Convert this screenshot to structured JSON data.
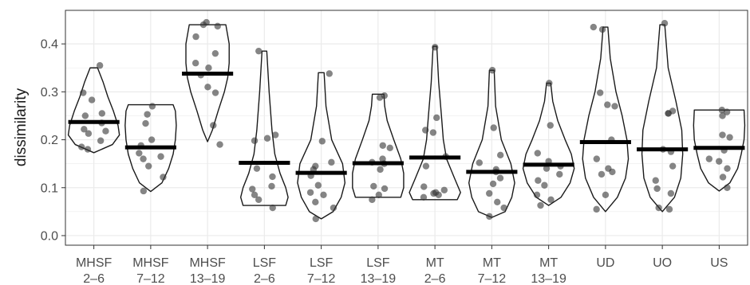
{
  "chart_data": {
    "type": "violin",
    "ylabel": "dissimilarity",
    "xlabel": "",
    "ylim": [
      -0.02,
      0.47
    ],
    "yticks": [
      0.0,
      0.1,
      0.2,
      0.3,
      0.4
    ],
    "ytick_labels": [
      "0.0",
      "0.1",
      "0.2",
      "0.3",
      "0.4"
    ],
    "grid": true,
    "theme": "bw",
    "colors": {
      "outline": "#1a1a1a",
      "point": "#333333",
      "mean_bar": "#000000",
      "grid_major": "#ebebeb",
      "panel_border": "#333333"
    },
    "categories": [
      {
        "label_line1": "MHSF",
        "label_line2": "2–6",
        "mean": 0.237,
        "violin": [
          [
            0.173,
            0.0
          ],
          [
            0.19,
            0.4
          ],
          [
            0.21,
            0.55
          ],
          [
            0.23,
            0.52
          ],
          [
            0.26,
            0.42
          ],
          [
            0.29,
            0.3
          ],
          [
            0.32,
            0.2
          ],
          [
            0.35,
            0.08
          ]
        ],
        "points": [
          0.355,
          0.298,
          0.283,
          0.255,
          0.25,
          0.235,
          0.222,
          0.218,
          0.213,
          0.198,
          0.185,
          0.18
        ]
      },
      {
        "label_line1": "MHSF",
        "label_line2": "7–12",
        "mean": 0.184,
        "violin": [
          [
            0.092,
            0.0
          ],
          [
            0.11,
            0.25
          ],
          [
            0.14,
            0.4
          ],
          [
            0.17,
            0.5
          ],
          [
            0.2,
            0.55
          ],
          [
            0.23,
            0.57
          ],
          [
            0.26,
            0.55
          ],
          [
            0.273,
            0.5
          ]
        ],
        "points": [
          0.27,
          0.253,
          0.234,
          0.2,
          0.188,
          0.172,
          0.165,
          0.16,
          0.145,
          0.122,
          0.093
        ]
      },
      {
        "label_line1": "MHSF",
        "label_line2": "13–19",
        "mean": 0.338,
        "violin": [
          [
            0.196,
            0.0
          ],
          [
            0.22,
            0.1
          ],
          [
            0.26,
            0.22
          ],
          [
            0.3,
            0.35
          ],
          [
            0.33,
            0.42
          ],
          [
            0.36,
            0.45
          ],
          [
            0.4,
            0.45
          ],
          [
            0.44,
            0.38
          ]
        ],
        "points": [
          0.445,
          0.44,
          0.437,
          0.415,
          0.38,
          0.36,
          0.35,
          0.335,
          0.31,
          0.298,
          0.23,
          0.19
        ]
      },
      {
        "label_line1": "LSF",
        "label_line2": "2–6",
        "mean": 0.152,
        "violin": [
          [
            0.063,
            0.45
          ],
          [
            0.08,
            0.5
          ],
          [
            0.1,
            0.45
          ],
          [
            0.13,
            0.33
          ],
          [
            0.17,
            0.22
          ],
          [
            0.22,
            0.16
          ],
          [
            0.3,
            0.1
          ],
          [
            0.385,
            0.05
          ]
        ],
        "points": [
          0.385,
          0.21,
          0.203,
          0.198,
          0.14,
          0.123,
          0.103,
          0.097,
          0.085,
          0.075,
          0.058
        ]
      },
      {
        "label_line1": "LSF",
        "label_line2": "7–12",
        "mean": 0.131,
        "violin": [
          [
            0.035,
            0.0
          ],
          [
            0.05,
            0.25
          ],
          [
            0.08,
            0.42
          ],
          [
            0.11,
            0.5
          ],
          [
            0.15,
            0.45
          ],
          [
            0.2,
            0.22
          ],
          [
            0.27,
            0.1
          ],
          [
            0.34,
            0.06
          ]
        ],
        "points": [
          0.338,
          0.197,
          0.153,
          0.145,
          0.138,
          0.125,
          0.105,
          0.09,
          0.085,
          0.07,
          0.058,
          0.035
        ]
      },
      {
        "label_line1": "LSF",
        "label_line2": "13–19",
        "mean": 0.151,
        "violin": [
          [
            0.08,
            0.55
          ],
          [
            0.1,
            0.62
          ],
          [
            0.13,
            0.62
          ],
          [
            0.16,
            0.55
          ],
          [
            0.2,
            0.38
          ],
          [
            0.24,
            0.22
          ],
          [
            0.27,
            0.16
          ],
          [
            0.295,
            0.14
          ]
        ],
        "points": [
          0.292,
          0.288,
          0.188,
          0.183,
          0.16,
          0.153,
          0.15,
          0.138,
          0.103,
          0.098,
          0.085,
          0.075
        ]
      },
      {
        "label_line1": "MT",
        "label_line2": "2–6",
        "mean": 0.163,
        "violin": [
          [
            0.075,
            0.48
          ],
          [
            0.09,
            0.55
          ],
          [
            0.12,
            0.42
          ],
          [
            0.16,
            0.25
          ],
          [
            0.2,
            0.18
          ],
          [
            0.25,
            0.14
          ],
          [
            0.32,
            0.08
          ],
          [
            0.395,
            0.04
          ]
        ],
        "points": [
          0.393,
          0.246,
          0.22,
          0.215,
          0.165,
          0.145,
          0.102,
          0.095,
          0.09,
          0.088,
          0.085,
          0.08
        ]
      },
      {
        "label_line1": "MT",
        "label_line2": "7–12",
        "mean": 0.133,
        "violin": [
          [
            0.038,
            0.0
          ],
          [
            0.05,
            0.28
          ],
          [
            0.08,
            0.42
          ],
          [
            0.11,
            0.48
          ],
          [
            0.15,
            0.4
          ],
          [
            0.2,
            0.2
          ],
          [
            0.27,
            0.08
          ],
          [
            0.345,
            0.05
          ]
        ],
        "points": [
          0.345,
          0.225,
          0.168,
          0.152,
          0.138,
          0.133,
          0.12,
          0.108,
          0.088,
          0.07,
          0.058,
          0.04
        ]
      },
      {
        "label_line1": "MT",
        "label_line2": "13–19",
        "mean": 0.148,
        "violin": [
          [
            0.063,
            0.0
          ],
          [
            0.08,
            0.3
          ],
          [
            0.11,
            0.52
          ],
          [
            0.14,
            0.62
          ],
          [
            0.17,
            0.55
          ],
          [
            0.2,
            0.4
          ],
          [
            0.24,
            0.22
          ],
          [
            0.28,
            0.1
          ],
          [
            0.318,
            0.05
          ]
        ],
        "points": [
          0.318,
          0.23,
          0.172,
          0.155,
          0.145,
          0.14,
          0.128,
          0.115,
          0.105,
          0.085,
          0.075,
          0.063
        ]
      },
      {
        "label_line1": "UD",
        "label_line2": "",
        "mean": 0.195,
        "violin": [
          [
            0.05,
            0.0
          ],
          [
            0.08,
            0.25
          ],
          [
            0.12,
            0.42
          ],
          [
            0.16,
            0.48
          ],
          [
            0.2,
            0.45
          ],
          [
            0.25,
            0.35
          ],
          [
            0.3,
            0.22
          ],
          [
            0.37,
            0.1
          ],
          [
            0.435,
            0.05
          ]
        ],
        "points": [
          0.435,
          0.43,
          0.298,
          0.273,
          0.27,
          0.2,
          0.16,
          0.14,
          0.133,
          0.128,
          0.085,
          0.055
        ]
      },
      {
        "label_line1": "UO",
        "label_line2": "",
        "mean": 0.18,
        "violin": [
          [
            0.05,
            0.0
          ],
          [
            0.08,
            0.25
          ],
          [
            0.12,
            0.38
          ],
          [
            0.17,
            0.42
          ],
          [
            0.22,
            0.4
          ],
          [
            0.28,
            0.28
          ],
          [
            0.35,
            0.12
          ],
          [
            0.44,
            0.05
          ]
        ],
        "points": [
          0.443,
          0.26,
          0.255,
          0.255,
          0.18,
          0.175,
          0.145,
          0.115,
          0.098,
          0.088,
          0.058,
          0.055
        ]
      },
      {
        "label_line1": "US",
        "label_line2": "",
        "mean": 0.183,
        "violin": [
          [
            0.093,
            0.0
          ],
          [
            0.11,
            0.3
          ],
          [
            0.14,
            0.52
          ],
          [
            0.17,
            0.62
          ],
          [
            0.2,
            0.7
          ],
          [
            0.23,
            0.72
          ],
          [
            0.262,
            0.7
          ]
        ],
        "points": [
          0.262,
          0.258,
          0.25,
          0.21,
          0.205,
          0.178,
          0.16,
          0.155,
          0.14,
          0.122,
          0.1
        ]
      }
    ]
  }
}
